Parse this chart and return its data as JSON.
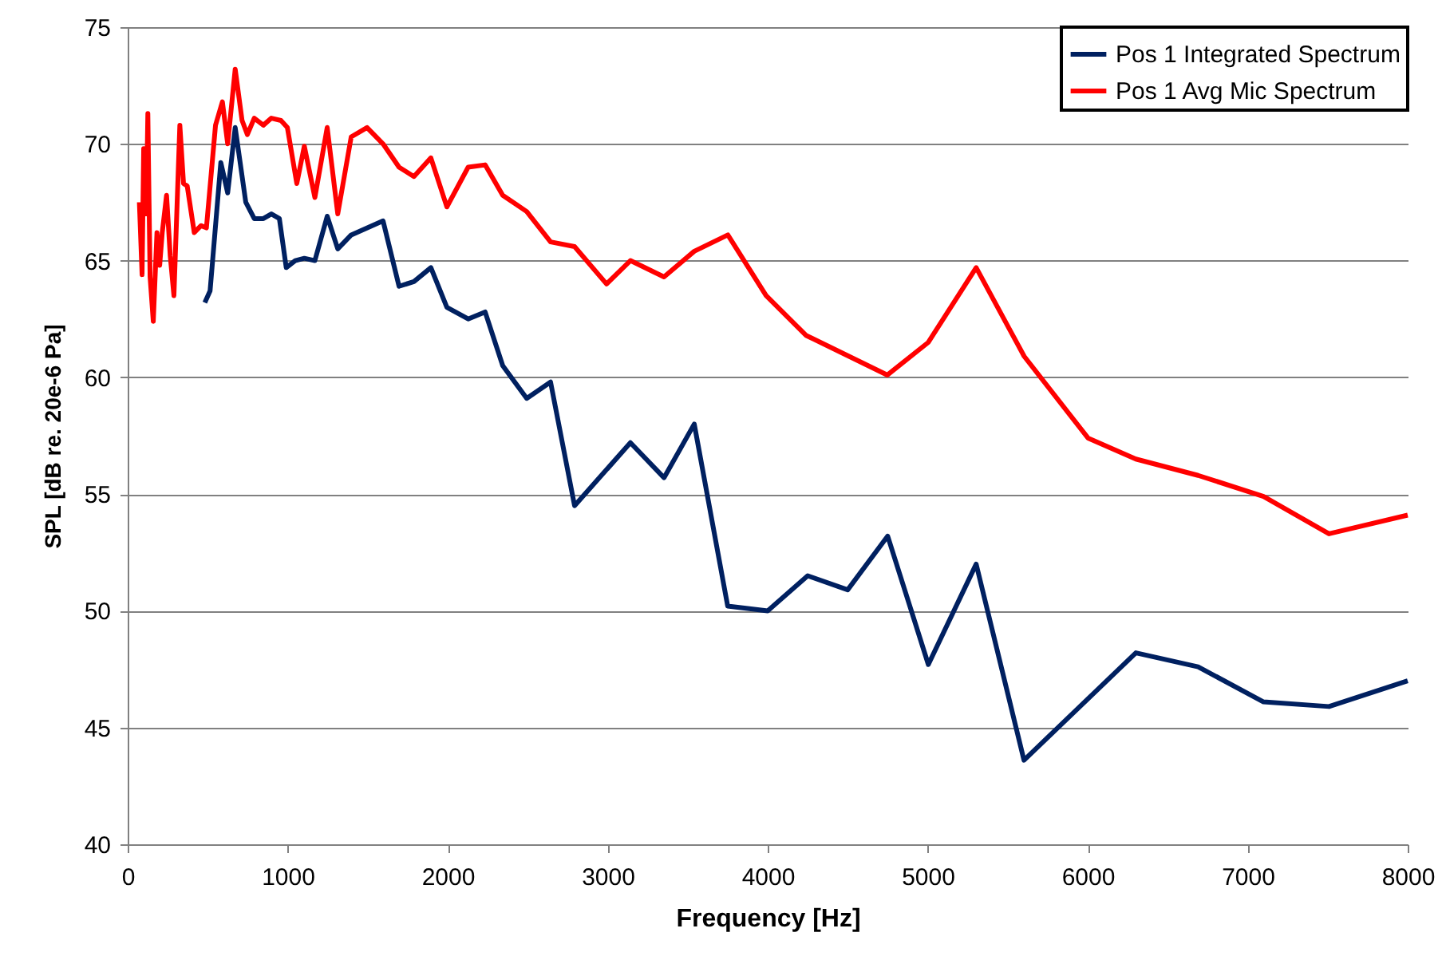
{
  "chart_data": {
    "type": "line",
    "xlabel": "Frequency [Hz]",
    "ylabel": "SPL [dB re. 20e-6 Pa]",
    "xlim": [
      0,
      8000
    ],
    "xticks": [
      0,
      1000,
      2000,
      3000,
      4000,
      5000,
      6000,
      7000,
      8000
    ],
    "ylim": [
      40,
      75
    ],
    "yticks": [
      40,
      45,
      50,
      55,
      60,
      65,
      70,
      75
    ],
    "grid": "y",
    "legend": "top right",
    "line_style": "solid",
    "marker": "none",
    "series": [
      {
        "name": "Pos 1 Integrated Spectrum",
        "color": "#002060",
        "x": [
          482,
          515,
          582,
          625,
          672,
          738,
          791,
          848,
          898,
          948,
          991,
          1047,
          1104,
          1170,
          1247,
          1313,
          1397,
          1596,
          1696,
          1789,
          1895,
          1995,
          2128,
          2234,
          2344,
          2494,
          2643,
          2793,
          3142,
          3352,
          3541,
          3750,
          4000,
          4250,
          4500,
          4750,
          5004,
          5303,
          5602,
          6301,
          6690,
          7099,
          7508,
          8000
        ],
        "values": [
          63.2,
          63.7,
          69.2,
          67.9,
          70.7,
          67.5,
          66.8,
          66.8,
          67.0,
          66.8,
          64.7,
          65.0,
          65.1,
          65.0,
          66.9,
          65.5,
          66.1,
          66.7,
          63.9,
          64.1,
          64.7,
          63.0,
          62.5,
          62.8,
          60.5,
          59.1,
          59.8,
          54.5,
          57.2,
          55.7,
          58.0,
          50.2,
          50.0,
          51.5,
          50.9,
          53.2,
          47.7,
          52.0,
          43.6,
          48.2,
          47.6,
          46.1,
          45.9,
          47.0
        ]
      },
      {
        "name": "Pos 1 Avg Mic Spectrum",
        "color": "#ff0000",
        "x": [
          73,
          90,
          100,
          116,
          126,
          140,
          160,
          183,
          200,
          216,
          243,
          266,
          289,
          326,
          349,
          372,
          416,
          459,
          492,
          549,
          592,
          625,
          672,
          715,
          748,
          791,
          848,
          898,
          958,
          998,
          1057,
          1104,
          1170,
          1247,
          1313,
          1397,
          1496,
          1596,
          1696,
          1789,
          1895,
          1995,
          2128,
          2234,
          2344,
          2494,
          2643,
          2793,
          2993,
          3142,
          3352,
          3541,
          3751,
          3990,
          4239,
          4748,
          5004,
          5303,
          5603,
          6002,
          6301,
          6690,
          7099,
          7508,
          8000
        ],
        "values": [
          67.5,
          64.4,
          69.8,
          67.0,
          71.3,
          64.3,
          62.4,
          66.2,
          64.8,
          66.2,
          67.8,
          65.2,
          63.5,
          70.8,
          68.3,
          68.2,
          66.2,
          66.5,
          66.4,
          70.8,
          71.8,
          70.0,
          73.2,
          71.0,
          70.4,
          71.1,
          70.8,
          71.1,
          71.0,
          70.7,
          68.3,
          69.9,
          67.7,
          70.7,
          67.0,
          70.3,
          70.7,
          70.0,
          69.0,
          68.6,
          69.4,
          67.3,
          69.0,
          69.1,
          67.8,
          67.1,
          65.8,
          65.6,
          64.0,
          65.0,
          64.3,
          65.4,
          66.1,
          63.5,
          61.8,
          60.1,
          61.5,
          64.7,
          60.9,
          57.4,
          56.5,
          55.8,
          54.9,
          53.3,
          54.1
        ]
      }
    ]
  }
}
